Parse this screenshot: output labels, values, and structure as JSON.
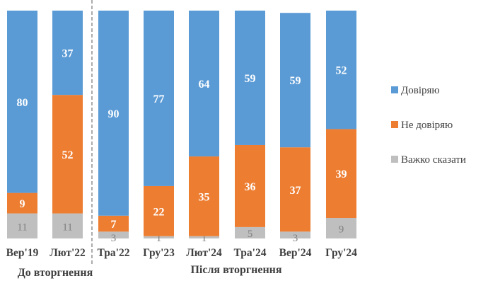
{
  "chart_data": {
    "type": "bar",
    "stacked": true,
    "categories": [
      "Вер'19",
      "Лют'22",
      "Тра'22",
      "Гру'23",
      "Лют'24",
      "Тра'24",
      "Вер'24",
      "Гру'24"
    ],
    "series": [
      {
        "name": "Довіряю",
        "color": "#5B9BD5",
        "values": [
          80,
          37,
          90,
          77,
          64,
          59,
          59,
          52
        ]
      },
      {
        "name": "Не довіряю",
        "color": "#ED7D31",
        "values": [
          9,
          52,
          7,
          22,
          35,
          36,
          37,
          39
        ]
      },
      {
        "name": "Важко сказати",
        "color": "#BFBFBF",
        "values": [
          11,
          11,
          3,
          1,
          1,
          5,
          3,
          9
        ]
      }
    ],
    "ylim": [
      0,
      100
    ],
    "groups": [
      {
        "label": "До вторгнення",
        "categories": [
          "Вер'19",
          "Лют'22"
        ]
      },
      {
        "label": "Після вторгнення",
        "categories": [
          "Тра'22",
          "Гру'23",
          "Лют'24",
          "Тра'24",
          "Вер'24",
          "Гру'24"
        ]
      }
    ],
    "legend": "right",
    "grid": false
  }
}
